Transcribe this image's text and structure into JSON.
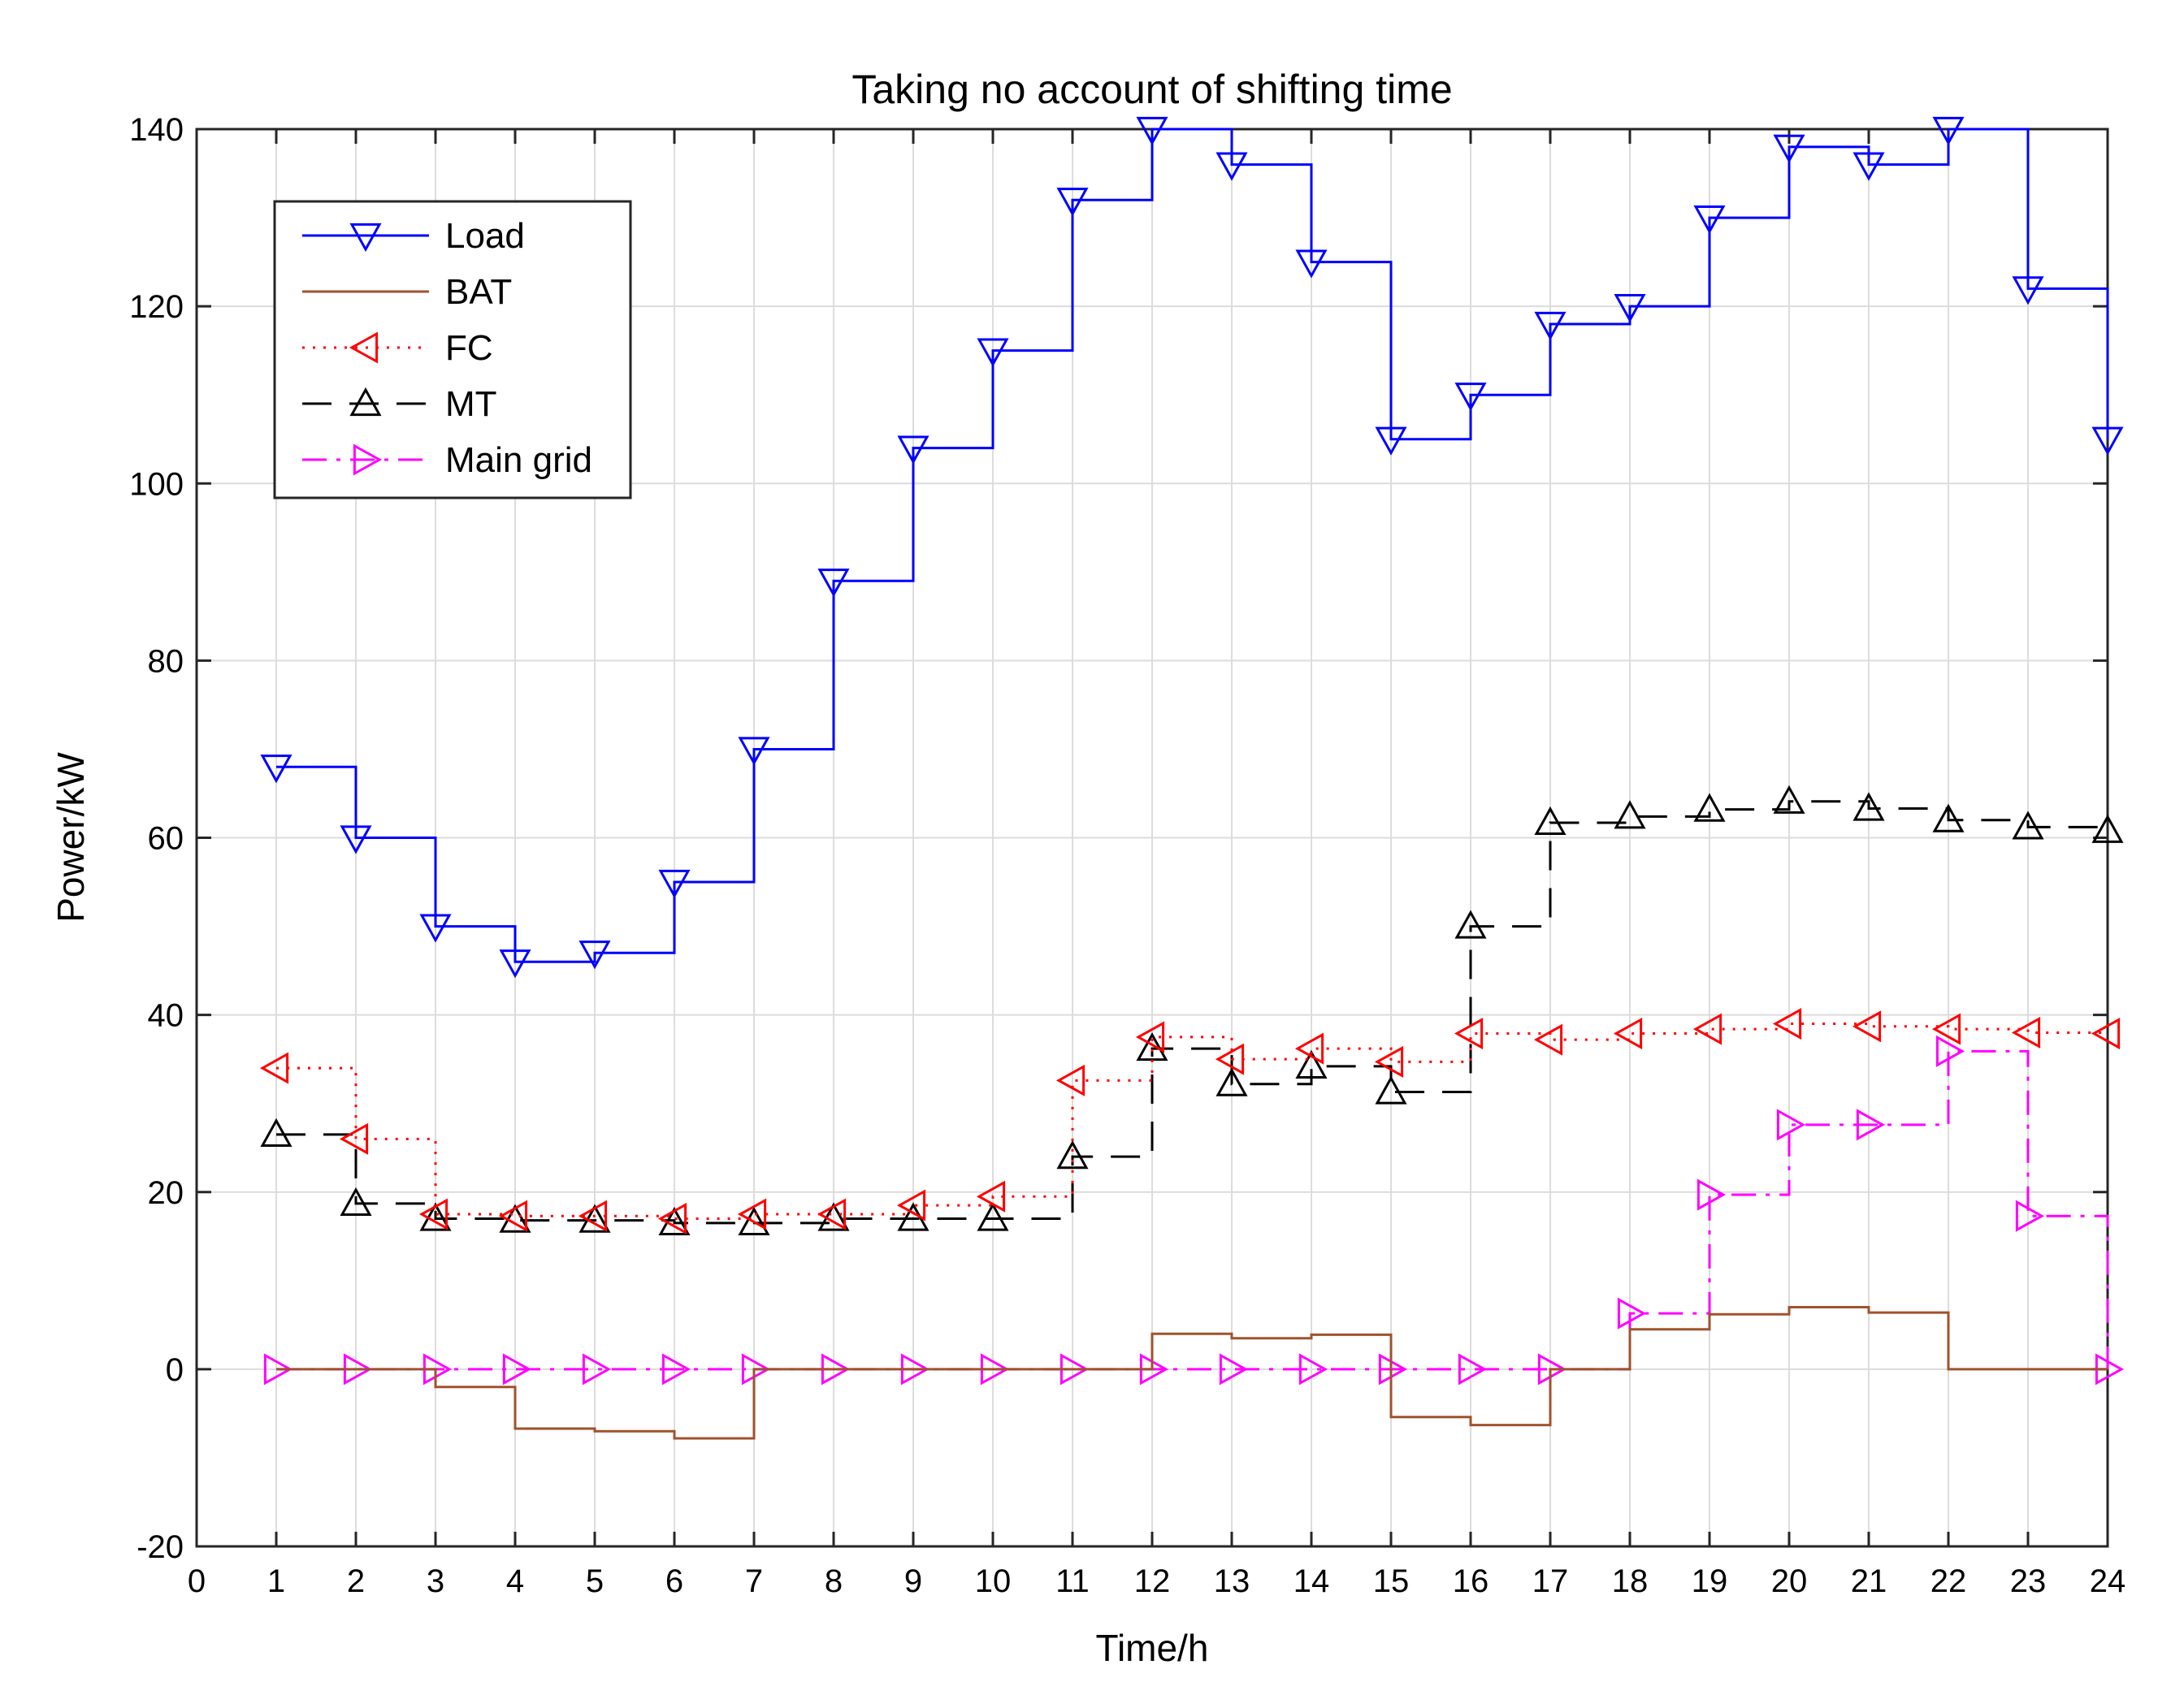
{
  "chart_data": {
    "type": "line",
    "step": "post",
    "title": "Taking no account of shifting time",
    "xlabel": "Time/h",
    "ylabel": "Power/kW",
    "xlim": [
      0,
      24
    ],
    "ylim": [
      -20,
      140
    ],
    "xticks": [
      0,
      1,
      2,
      3,
      4,
      5,
      6,
      7,
      8,
      9,
      10,
      11,
      12,
      13,
      14,
      15,
      16,
      17,
      18,
      19,
      20,
      21,
      22,
      23,
      24
    ],
    "yticks": [
      -20,
      0,
      20,
      40,
      60,
      80,
      100,
      120,
      140
    ],
    "grid": true,
    "legend_position": "top-left",
    "x": [
      1,
      2,
      3,
      4,
      5,
      6,
      7,
      8,
      9,
      10,
      11,
      12,
      13,
      14,
      15,
      16,
      17,
      18,
      19,
      20,
      21,
      22,
      23,
      24
    ],
    "series": [
      {
        "name": "Load",
        "color": "#0000ff",
        "linestyle": "solid",
        "marker": "triangle-down",
        "values": [
          68,
          60,
          50,
          46,
          47,
          55,
          70,
          89,
          104,
          115,
          132,
          140,
          136,
          125,
          105,
          110,
          118,
          120,
          130,
          138,
          136,
          140,
          122,
          105
        ]
      },
      {
        "name": "BAT",
        "color": "#a0522d",
        "linestyle": "solid",
        "marker": "none",
        "values": [
          0,
          0,
          -2,
          -6.7,
          -7,
          -7.8,
          0,
          0,
          0,
          0,
          0,
          4,
          3.5,
          3.9,
          -5.4,
          -6.3,
          0,
          4.5,
          6.2,
          7,
          6.4,
          0,
          0,
          0
        ]
      },
      {
        "name": "FC",
        "color": "#ff0000",
        "linestyle": "dotted",
        "marker": "triangle-left",
        "values": [
          34,
          26,
          17.5,
          17.3,
          17.3,
          17,
          17.5,
          17.5,
          18.5,
          19.5,
          32.6,
          37.5,
          35,
          36.2,
          34.7,
          37.9,
          37.2,
          37.9,
          38.4,
          39,
          38.7,
          38.4,
          38,
          37.9
        ]
      },
      {
        "name": "MT",
        "color": "#000000",
        "linestyle": "dashed",
        "marker": "triangle-up",
        "values": [
          26.5,
          18.7,
          17,
          16.8,
          16.8,
          16.5,
          16.5,
          17,
          17,
          17,
          24,
          36.2,
          32.2,
          34.2,
          31.3,
          50,
          61.7,
          62.4,
          63.2,
          64.1,
          63.3,
          62,
          61.2,
          60.8
        ]
      },
      {
        "name": "Main grid",
        "color": "#ff00ff",
        "linestyle": "dashdot",
        "marker": "triangle-right",
        "values": [
          0,
          0,
          0,
          0,
          0,
          0,
          0,
          0,
          0,
          0,
          0,
          0,
          0,
          0,
          0,
          0,
          0,
          6.3,
          19.7,
          27.6,
          27.6,
          35.9,
          17.3,
          0
        ]
      }
    ]
  }
}
